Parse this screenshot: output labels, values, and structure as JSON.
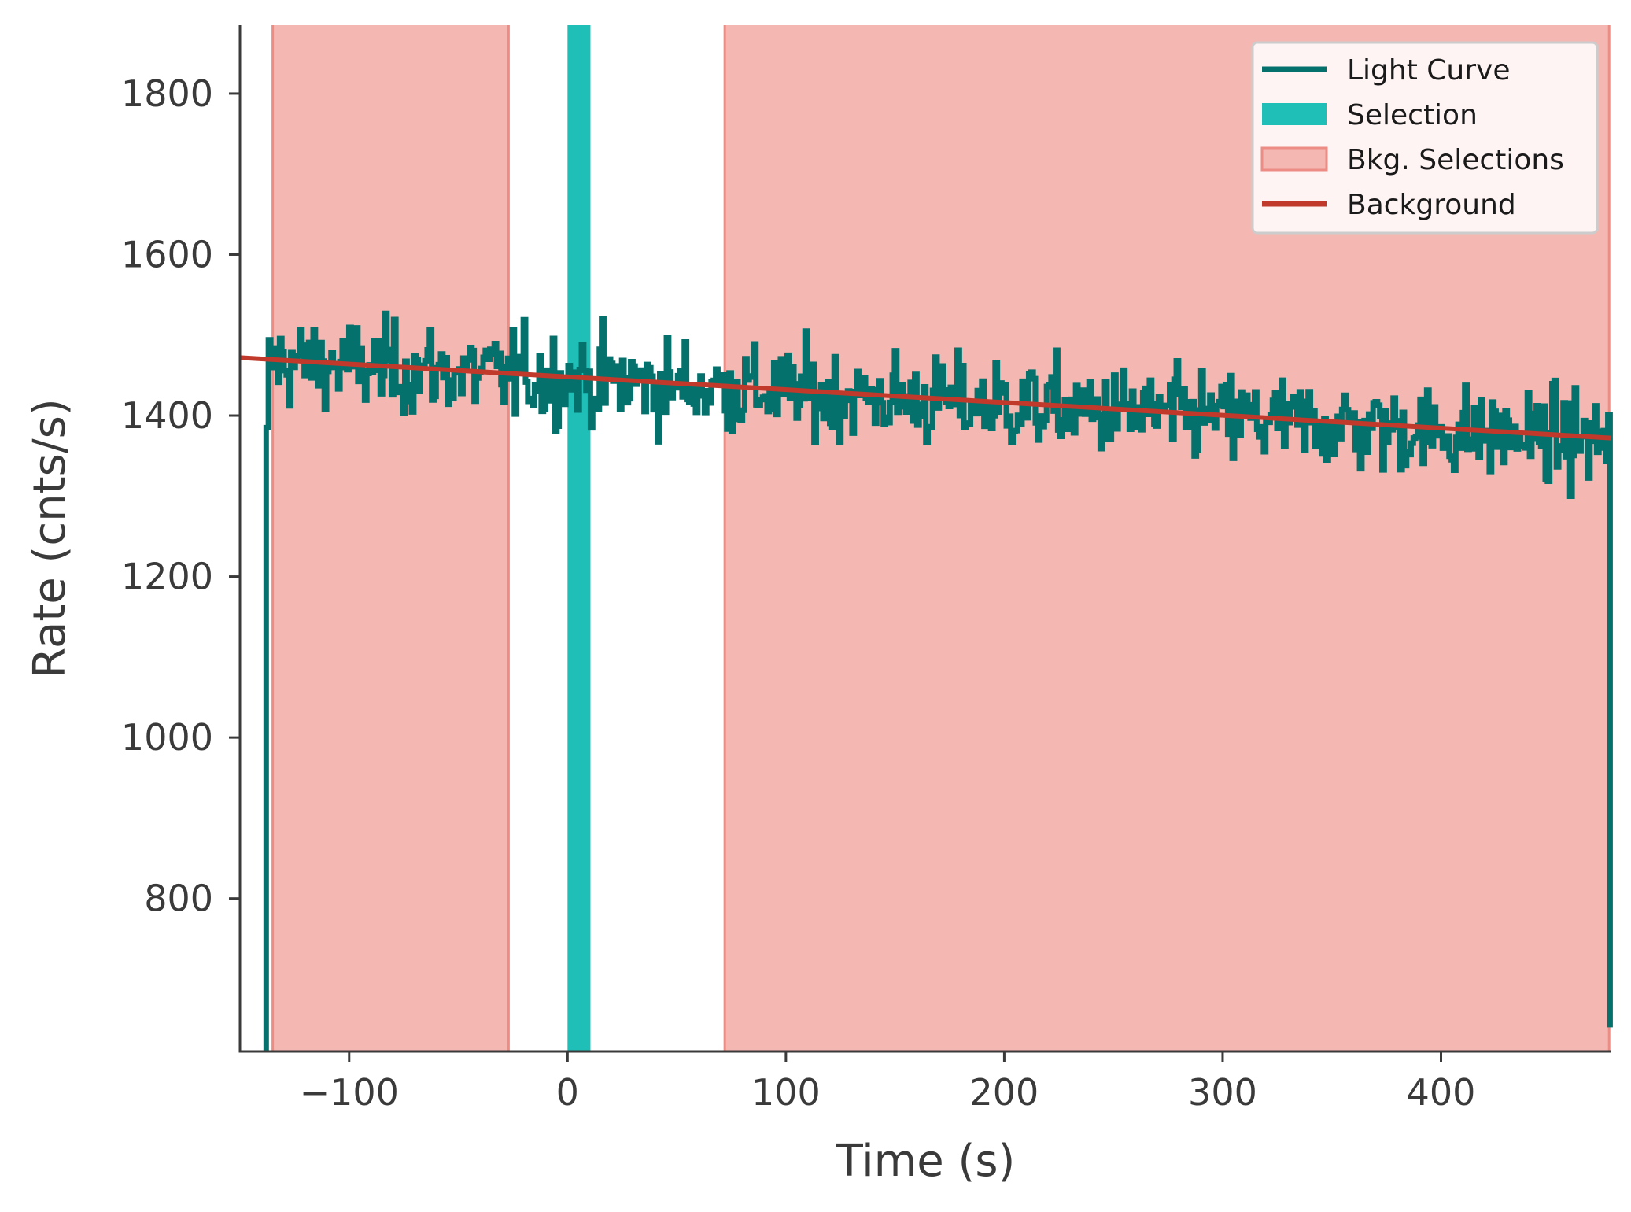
{
  "chart_data": {
    "type": "line",
    "title": "",
    "xlabel": "Time (s)",
    "ylabel": "Rate (cnts/s)",
    "xlim": [
      -150,
      478
    ],
    "ylim": [
      610,
      1885
    ],
    "x_ticks": [
      -100,
      0,
      100,
      200,
      300,
      400
    ],
    "x_tick_labels": [
      "−100",
      "0",
      "100",
      "200",
      "300",
      "400"
    ],
    "y_ticks": [
      800,
      1000,
      1200,
      1400,
      1600,
      1800
    ],
    "y_tick_labels": [
      "800",
      "1000",
      "1200",
      "1400",
      "1600",
      "1800"
    ],
    "grid": false,
    "legend_position": "top-right",
    "colors": {
      "light_curve": "#05716c",
      "selection": "#1fbfb8",
      "bkg_fill": "#f5b7b1",
      "bkg_edge": "#ec8c84",
      "background": "#c0392b",
      "axis": "#3a3a3a"
    },
    "legend": [
      {
        "key": "light_curve",
        "label": "Light Curve",
        "style": "line"
      },
      {
        "key": "selection",
        "label": "Selection",
        "style": "patch"
      },
      {
        "key": "bkg",
        "label": "Bkg. Selections",
        "style": "patch-edge"
      },
      {
        "key": "background",
        "label": "Background",
        "style": "line"
      }
    ],
    "selection": {
      "x_range": [
        0,
        10.5
      ]
    },
    "bkg_selections": [
      {
        "x_range": [
          -135,
          -27
        ]
      },
      {
        "x_range": [
          72,
          477
        ]
      }
    ],
    "background_fit": {
      "x": [
        -150,
        478
      ],
      "y": [
        1472,
        1372
      ]
    },
    "light_curve": {
      "x_range": [
        -138,
        478
      ],
      "bin_width": 1.024,
      "trend_start": 1468,
      "trend_end": 1368,
      "scatter": 28,
      "edge_values": {
        "first": 1385,
        "last": 640
      }
    }
  }
}
